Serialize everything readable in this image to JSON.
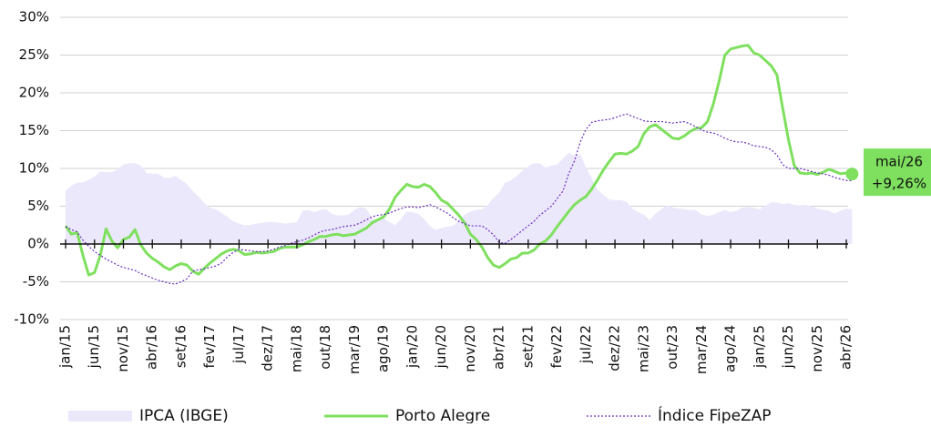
{
  "chart_data": {
    "type": "line",
    "categories": [
      "jan/15",
      null,
      null,
      null,
      null,
      "jun/15",
      null,
      null,
      null,
      null,
      "nov/15",
      null,
      null,
      null,
      null,
      "abr/16",
      null,
      null,
      null,
      null,
      "set/16",
      null,
      null,
      null,
      null,
      "fev/17",
      null,
      null,
      null,
      null,
      "jul/17",
      null,
      null,
      null,
      null,
      "dez/17",
      null,
      null,
      null,
      null,
      "mai/18",
      null,
      null,
      null,
      null,
      "out/18",
      null,
      null,
      null,
      null,
      "mar/19",
      null,
      null,
      null,
      null,
      "ago/19",
      null,
      null,
      null,
      null,
      "jan/20",
      null,
      null,
      null,
      null,
      "jun/20",
      null,
      null,
      null,
      null,
      "nov/20",
      null,
      null,
      null,
      null,
      "abr/21",
      null,
      null,
      null,
      null,
      "set/21",
      null,
      null,
      null,
      null,
      "fev/22",
      null,
      null,
      null,
      null,
      "jul/22",
      null,
      null,
      null,
      null,
      "dez/22",
      null,
      null,
      null,
      null,
      "mai/23",
      null,
      null,
      null,
      null,
      "out/23",
      null,
      null,
      null,
      null,
      "mar/24",
      null,
      null,
      null,
      null,
      "ago/24",
      null,
      null,
      null,
      null,
      "jan/25",
      null,
      null,
      null,
      null,
      "jun/25",
      null,
      null,
      null,
      null,
      "nov/25",
      null,
      null,
      null,
      null,
      "abr/26",
      "mai/26"
    ],
    "series": [
      {
        "name": "IPCA (IBGE)",
        "type": "area",
        "color": "#ece8fb",
        "values": [
          7.1,
          7.7,
          8.1,
          8.2,
          8.5,
          8.9,
          9.6,
          9.5,
          9.5,
          9.9,
          10.5,
          10.7,
          10.7,
          10.4,
          9.4,
          9.3,
          9.3,
          8.8,
          8.7,
          9.0,
          8.5,
          7.9,
          7.0,
          6.3,
          5.4,
          4.8,
          4.6,
          4.1,
          3.6,
          3.0,
          2.7,
          2.5,
          2.5,
          2.7,
          2.8,
          2.9,
          2.9,
          2.8,
          2.7,
          2.8,
          2.9,
          4.4,
          4.5,
          4.2,
          4.5,
          4.6,
          4.0,
          3.8,
          3.8,
          3.9,
          4.6,
          4.9,
          4.7,
          3.4,
          3.2,
          3.4,
          2.9,
          2.5,
          3.3,
          4.3,
          4.2,
          4.0,
          3.3,
          2.4,
          1.9,
          2.1,
          2.3,
          2.4,
          3.1,
          3.9,
          4.3,
          4.5,
          4.6,
          5.2,
          6.1,
          6.8,
          8.1,
          8.4,
          9.0,
          9.7,
          10.3,
          10.7,
          10.7,
          10.1,
          10.4,
          10.5,
          11.3,
          12.1,
          11.7,
          11.9,
          10.1,
          8.7,
          7.2,
          6.5,
          5.9,
          5.8,
          5.8,
          5.6,
          4.7,
          4.2,
          3.9,
          3.2,
          4.0,
          4.6,
          5.2,
          4.8,
          4.7,
          4.6,
          4.5,
          4.5,
          3.9,
          3.7,
          3.9,
          4.2,
          4.5,
          4.2,
          4.4,
          4.8,
          4.9,
          4.8,
          4.6,
          5.1,
          5.5,
          5.5,
          5.3,
          5.4,
          5.2,
          5.1,
          5.2,
          5.0,
          4.7,
          4.5,
          4.4,
          4.0,
          4.4,
          4.7,
          4.6
        ]
      },
      {
        "name": "Porto Alegre",
        "type": "line",
        "color": "#7ee05e",
        "end_label": "+9,26%",
        "values": [
          2.4,
          1.3,
          1.5,
          -1.5,
          -4.1,
          -3.8,
          -1.5,
          2.0,
          0.4,
          -0.5,
          0.6,
          0.9,
          1.9,
          -0.1,
          -1.2,
          -1.9,
          -2.4,
          -3.0,
          -3.4,
          -2.9,
          -2.6,
          -2.8,
          -3.6,
          -4.0,
          -3.2,
          -2.5,
          -1.9,
          -1.3,
          -0.9,
          -0.7,
          -0.9,
          -1.4,
          -1.3,
          -1.1,
          -1.2,
          -1.1,
          -1.0,
          -0.6,
          -0.4,
          -0.4,
          -0.4,
          -0.1,
          0.3,
          0.6,
          1.0,
          1.0,
          1.2,
          1.3,
          1.1,
          1.2,
          1.3,
          1.7,
          2.1,
          2.8,
          3.2,
          3.6,
          4.6,
          6.2,
          7.1,
          7.9,
          7.6,
          7.5,
          7.9,
          7.6,
          6.8,
          5.8,
          5.4,
          4.6,
          3.8,
          2.8,
          1.3,
          0.6,
          -0.4,
          -1.8,
          -2.8,
          -3.1,
          -2.6,
          -2.0,
          -1.8,
          -1.2,
          -1.2,
          -0.8,
          0.0,
          0.4,
          1.2,
          2.3,
          3.3,
          4.3,
          5.2,
          5.8,
          6.3,
          7.3,
          8.5,
          9.8,
          10.9,
          11.9,
          12.0,
          11.9,
          12.3,
          12.9,
          14.6,
          15.5,
          15.8,
          15.2,
          14.6,
          14.0,
          13.9,
          14.3,
          14.9,
          15.3,
          15.4,
          16.2,
          18.5,
          21.5,
          25.0,
          25.8,
          26.0,
          26.2,
          26.3,
          25.3,
          25.0,
          24.3,
          23.6,
          22.4,
          18.0,
          13.8,
          10.4,
          9.4,
          9.3,
          9.4,
          9.2,
          9.5,
          9.9,
          9.6,
          9.3,
          9.4,
          9.26
        ]
      },
      {
        "name": "Índice FipeZAP",
        "type": "line",
        "style": "dotted",
        "color": "#6a2fbf",
        "values": [
          2.3,
          1.9,
          1.6,
          0.5,
          -0.3,
          -1.0,
          -1.5,
          -2.0,
          -2.4,
          -2.8,
          -3.1,
          -3.3,
          -3.5,
          -3.9,
          -4.2,
          -4.5,
          -4.8,
          -5.0,
          -5.2,
          -5.3,
          -5.0,
          -4.6,
          -3.6,
          -3.4,
          -3.3,
          -3.1,
          -2.9,
          -2.5,
          -1.7,
          -1.1,
          -0.7,
          -0.8,
          -0.9,
          -1.0,
          -1.0,
          -0.9,
          -0.7,
          -0.4,
          -0.2,
          0.1,
          0.3,
          0.5,
          0.8,
          1.2,
          1.6,
          1.8,
          1.9,
          2.1,
          2.3,
          2.4,
          2.5,
          2.8,
          3.2,
          3.6,
          3.8,
          3.9,
          4.1,
          4.4,
          4.7,
          4.9,
          4.9,
          4.8,
          5.0,
          5.2,
          4.9,
          4.5,
          4.1,
          3.5,
          3.0,
          2.7,
          2.4,
          2.4,
          2.4,
          1.9,
          1.2,
          0.2,
          0.1,
          0.6,
          1.2,
          1.8,
          2.4,
          3.0,
          3.8,
          4.4,
          5.0,
          6.0,
          7.0,
          9.3,
          11.0,
          13.5,
          15.2,
          16.1,
          16.3,
          16.4,
          16.5,
          16.7,
          17.0,
          17.2,
          16.9,
          16.6,
          16.3,
          16.2,
          16.2,
          16.2,
          16.1,
          16.0,
          16.1,
          16.2,
          15.9,
          15.5,
          15.1,
          14.8,
          14.7,
          14.4,
          14.0,
          13.7,
          13.5,
          13.5,
          13.3,
          13.0,
          12.9,
          12.8,
          12.5,
          11.8,
          10.5,
          10.0,
          10.0,
          10.0,
          9.8,
          9.6,
          9.4,
          9.3,
          9.1,
          8.8,
          8.6,
          8.4,
          8.4
        ]
      }
    ],
    "ylim": [
      -10,
      30
    ],
    "yticks": [
      {
        "value": -10,
        "label": "-10%"
      },
      {
        "value": -5,
        "label": "-5%"
      },
      {
        "value": 0,
        "label": "0%"
      },
      {
        "value": 5,
        "label": "5%"
      },
      {
        "value": 10,
        "label": "10%"
      },
      {
        "value": 15,
        "label": "15%"
      },
      {
        "value": 20,
        "label": "20%"
      },
      {
        "value": 25,
        "label": "25%"
      },
      {
        "value": 30,
        "label": "30%"
      }
    ],
    "grid": true,
    "legend": "bottom"
  }
}
